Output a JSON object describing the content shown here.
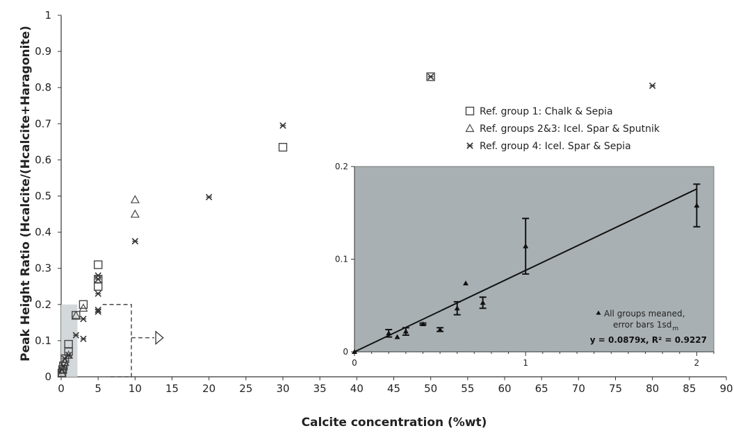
{
  "chart_data": {
    "main": {
      "type": "scatter",
      "xlabel": "Calcite concentration (%wt)",
      "ylabel": "Peak Height Ratio (Hcalcite/(Hcalcite+Haragonite)",
      "xlim": [
        0,
        90
      ],
      "ylim": [
        0,
        1
      ],
      "xticks": [
        "0",
        "5",
        "10",
        "15",
        "20",
        "25",
        "30",
        "35",
        "40",
        "45",
        "50",
        "55",
        "60",
        "65",
        "70",
        "75",
        "80",
        "85",
        "90"
      ],
      "yticks": [
        "0",
        "0.1",
        "0.2",
        "0.3",
        "0.4",
        "0.5",
        "0.6",
        "0.7",
        "0.8",
        "0.9",
        "1"
      ],
      "legend_position": "upper-right",
      "series": [
        {
          "name": "Ref. group 1: Chalk & Sepia",
          "marker": "square",
          "points": [
            [
              0.1,
              0.01
            ],
            [
              0.2,
              0.02
            ],
            [
              0.3,
              0.03
            ],
            [
              0.5,
              0.05
            ],
            [
              1,
              0.07
            ],
            [
              1,
              0.09
            ],
            [
              2,
              0.17
            ],
            [
              3,
              0.2
            ],
            [
              5,
              0.25
            ],
            [
              5,
              0.27
            ],
            [
              5,
              0.31
            ],
            [
              30,
              0.635
            ],
            [
              50,
              0.83
            ]
          ]
        },
        {
          "name": "Ref. groups 2&3: Icel. Spar & Sputnik",
          "marker": "triangle",
          "points": [
            [
              0.1,
              0.01
            ],
            [
              0.2,
              0.02
            ],
            [
              0.5,
              0.04
            ],
            [
              1,
              0.06
            ],
            [
              2,
              0.17
            ],
            [
              3,
              0.19
            ],
            [
              10,
              0.45
            ],
            [
              10,
              0.49
            ]
          ]
        },
        {
          "name": "Ref. group 4: Icel. Spar & Sepia",
          "marker": "star",
          "points": [
            [
              0.1,
              0.02
            ],
            [
              0.3,
              0.03
            ],
            [
              0.5,
              0.05
            ],
            [
              1,
              0.06
            ],
            [
              2,
              0.115
            ],
            [
              3,
              0.105
            ],
            [
              3,
              0.16
            ],
            [
              5,
              0.18
            ],
            [
              5,
              0.185
            ],
            [
              5,
              0.23
            ],
            [
              5,
              0.27
            ],
            [
              5,
              0.28
            ],
            [
              10,
              0.375
            ],
            [
              20,
              0.497
            ],
            [
              30,
              0.695
            ],
            [
              50,
              0.83
            ],
            [
              80,
              0.805
            ]
          ]
        }
      ],
      "zoom_region": {
        "x": [
          0,
          2.2
        ],
        "y": [
          0,
          0.2
        ]
      }
    },
    "inset": {
      "type": "scatter",
      "xlim": [
        0,
        2.1
      ],
      "ylim": [
        0,
        0.2
      ],
      "xticks": [
        "0",
        "1",
        "2"
      ],
      "yticks": [
        "0",
        "0.1",
        "0.2"
      ],
      "background": "#a9b0b3",
      "series": [
        {
          "name": "All groups meaned, error bars 1sdm",
          "marker": "filled-triangle",
          "points": [
            {
              "x": 0,
              "y": 0,
              "err": 0
            },
            {
              "x": 0.2,
              "y": 0.02,
              "err": 0.004
            },
            {
              "x": 0.25,
              "y": 0.016,
              "err": 0
            },
            {
              "x": 0.3,
              "y": 0.022,
              "err": 0.004
            },
            {
              "x": 0.4,
              "y": 0.03,
              "err": 0.001
            },
            {
              "x": 0.5,
              "y": 0.024,
              "err": 0.002
            },
            {
              "x": 0.6,
              "y": 0.047,
              "err": 0.007
            },
            {
              "x": 0.65,
              "y": 0.074,
              "err": 0
            },
            {
              "x": 0.75,
              "y": 0.053,
              "err": 0.006
            },
            {
              "x": 1,
              "y": 0.114,
              "err": 0.03
            },
            {
              "x": 2,
              "y": 0.158,
              "err": 0.023
            }
          ]
        }
      ],
      "fit": {
        "slope": 0.0879,
        "x": [
          0,
          2
        ]
      },
      "note_line1": "All groups meaned,",
      "note_line2": "error bars 1sd",
      "note_sub": "m",
      "equation": "y = 0.0879x, R² = 0.9227"
    }
  }
}
